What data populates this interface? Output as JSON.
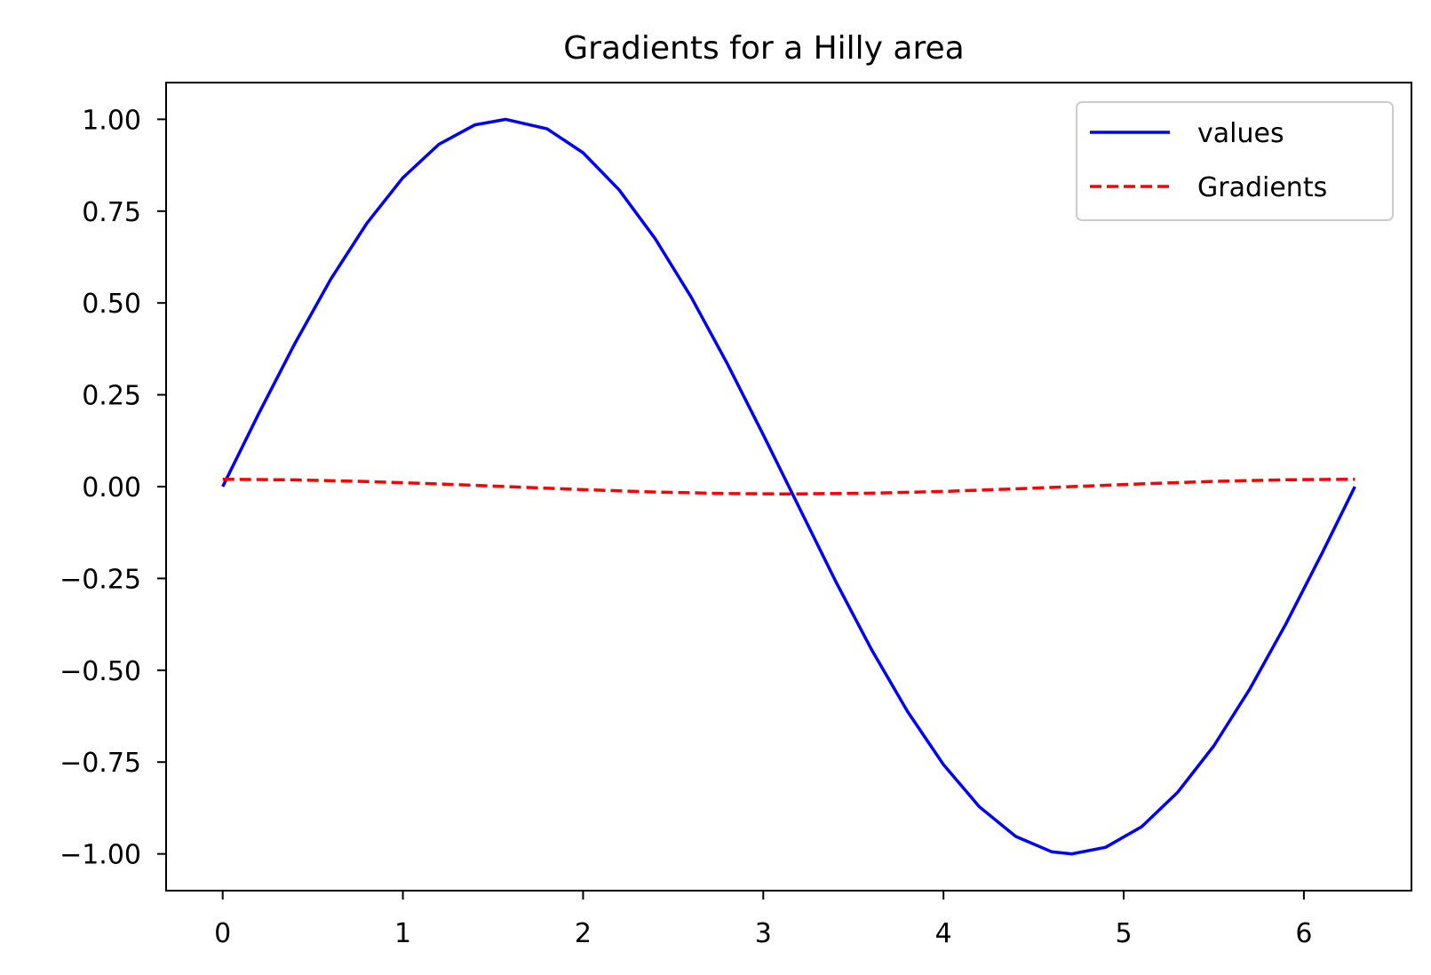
{
  "chart_data": {
    "type": "line",
    "title": "Gradients for a Hilly area",
    "xlabel": "",
    "ylabel": "",
    "xlim": [
      -0.314,
      6.597
    ],
    "ylim": [
      -1.1,
      1.1
    ],
    "x_ticks": [
      0,
      1,
      2,
      3,
      4,
      5,
      6
    ],
    "x_tick_labels": [
      "0",
      "1",
      "2",
      "3",
      "4",
      "5",
      "6"
    ],
    "y_ticks": [
      1.0,
      0.75,
      0.5,
      0.25,
      0.0,
      -0.25,
      -0.5,
      -0.75,
      -1.0
    ],
    "y_tick_labels": [
      "1.00",
      "0.75",
      "0.50",
      "0.25",
      "0.00",
      "−0.25",
      "−0.50",
      "−0.75",
      "−1.00"
    ],
    "grid": false,
    "legend": {
      "placement": "top-right"
    },
    "series": [
      {
        "name": "values",
        "color": "#0000ff",
        "style": "solid",
        "x": [
          0,
          0.2,
          0.4,
          0.6,
          0.8,
          1.0,
          1.2,
          1.4,
          1.571,
          1.8,
          2.0,
          2.2,
          2.4,
          2.6,
          2.8,
          3.0,
          3.142,
          3.4,
          3.6,
          3.8,
          4.0,
          4.2,
          4.4,
          4.6,
          4.712,
          4.9,
          5.1,
          5.3,
          5.5,
          5.7,
          5.9,
          6.1,
          6.283
        ],
        "y": [
          0.0,
          0.199,
          0.389,
          0.565,
          0.717,
          0.841,
          0.932,
          0.985,
          1.0,
          0.974,
          0.909,
          0.808,
          0.675,
          0.516,
          0.335,
          0.141,
          0.0,
          -0.256,
          -0.443,
          -0.612,
          -0.757,
          -0.872,
          -0.952,
          -0.994,
          -1.0,
          -0.982,
          -0.926,
          -0.832,
          -0.706,
          -0.551,
          -0.374,
          -0.182,
          0.0
        ]
      },
      {
        "name": "Gradients",
        "color": "#ff0000",
        "style": "dashed",
        "x": [
          0,
          0.4,
          0.8,
          1.2,
          1.571,
          2.0,
          2.4,
          2.8,
          3.142,
          3.6,
          4.0,
          4.4,
          4.712,
          5.1,
          5.5,
          5.9,
          6.283
        ],
        "y": [
          0.02,
          0.0184,
          0.0139,
          0.0072,
          0.0,
          -0.0083,
          -0.0147,
          -0.0188,
          -0.02,
          -0.0179,
          -0.0131,
          -0.0061,
          0.0,
          0.0076,
          0.0142,
          0.0186,
          0.02
        ]
      }
    ]
  }
}
